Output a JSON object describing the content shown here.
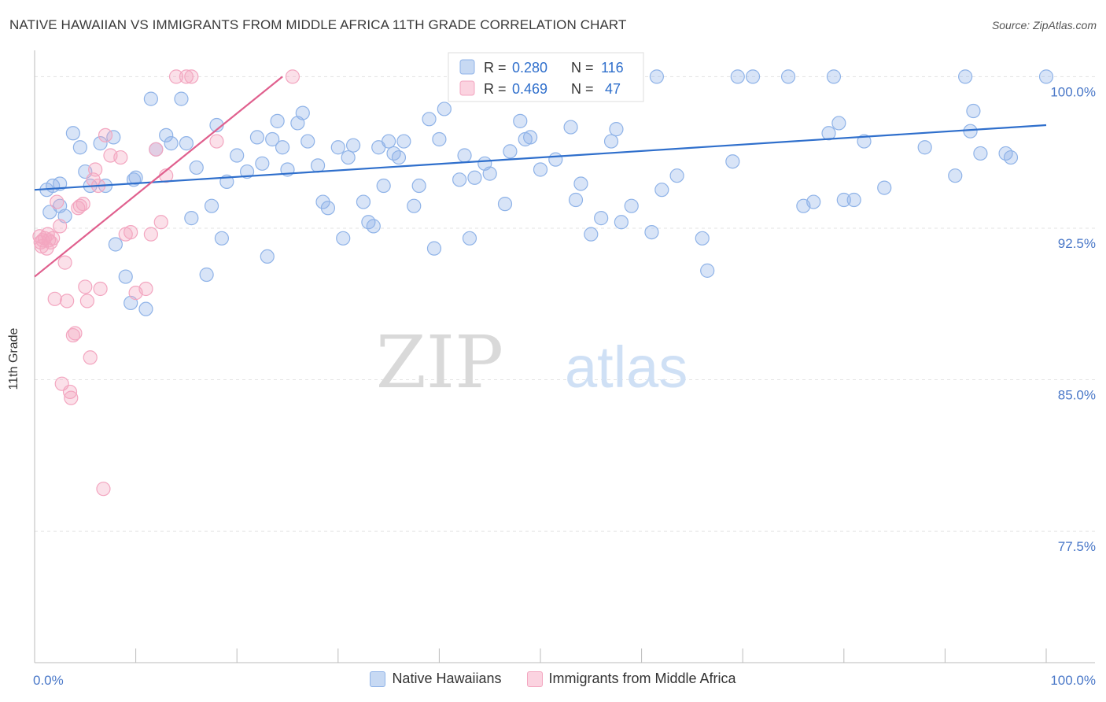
{
  "chart_data": {
    "type": "scatter",
    "title": "NATIVE HAWAIIAN VS IMMIGRANTS FROM MIDDLE AFRICA 11TH GRADE CORRELATION CHART",
    "source": "Source: ZipAtlas.com",
    "ylabel": "11th Grade",
    "xlabel": "",
    "xlim": [
      0,
      100
    ],
    "ylim": [
      71,
      101.3
    ],
    "x_tick_labels": [
      "0.0%",
      "100.0%"
    ],
    "y_ticks": [
      {
        "value": 100.0,
        "label": "100.0%"
      },
      {
        "value": 92.5,
        "label": "92.5%"
      },
      {
        "value": 85.0,
        "label": "85.0%"
      },
      {
        "value": 77.5,
        "label": "77.5%"
      }
    ],
    "watermark": {
      "part1": "ZIP",
      "part2": "atlas"
    },
    "legend": [
      {
        "r_label": "R =",
        "r_value": "0.280",
        "n_label": "N =",
        "n_value": "116"
      },
      {
        "r_label": "R =",
        "r_value": "0.469",
        "n_label": "N =",
        "n_value": "47"
      }
    ],
    "series": [
      {
        "name": "Native Hawaiians",
        "color": "#8fb3e8",
        "line_color": "#2f6fcc",
        "trend": [
          [
            0,
            94.4
          ],
          [
            100,
            97.6
          ]
        ],
        "points": [
          [
            1.2,
            94.4
          ],
          [
            1.8,
            94.6
          ],
          [
            2.5,
            94.7
          ],
          [
            3.8,
            97.2
          ],
          [
            4.5,
            96.5
          ],
          [
            5.0,
            95.3
          ],
          [
            6.5,
            96.7
          ],
          [
            7.0,
            94.6
          ],
          [
            7.8,
            97.0
          ],
          [
            9.0,
            90.1
          ],
          [
            9.5,
            88.8
          ],
          [
            10.0,
            95.0
          ],
          [
            11.0,
            88.5
          ],
          [
            11.5,
            98.9
          ],
          [
            12.0,
            96.4
          ],
          [
            13.0,
            97.1
          ],
          [
            13.5,
            96.7
          ],
          [
            14.5,
            98.9
          ],
          [
            15.0,
            96.7
          ],
          [
            15.5,
            93.0
          ],
          [
            16.0,
            95.5
          ],
          [
            17.0,
            90.2
          ],
          [
            17.5,
            93.6
          ],
          [
            18.0,
            97.6
          ],
          [
            18.5,
            92.0
          ],
          [
            19.0,
            94.8
          ],
          [
            20.0,
            96.1
          ],
          [
            21.0,
            95.3
          ],
          [
            22.0,
            97.0
          ],
          [
            22.5,
            95.7
          ],
          [
            23.0,
            91.1
          ],
          [
            23.5,
            96.9
          ],
          [
            24.0,
            97.8
          ],
          [
            24.5,
            96.5
          ],
          [
            25.0,
            95.4
          ],
          [
            26.0,
            97.7
          ],
          [
            26.5,
            98.2
          ],
          [
            27.0,
            96.8
          ],
          [
            28.0,
            95.6
          ],
          [
            28.5,
            93.8
          ],
          [
            29.0,
            93.5
          ],
          [
            30.0,
            96.5
          ],
          [
            30.5,
            92.0
          ],
          [
            31.0,
            96.0
          ],
          [
            31.5,
            96.6
          ],
          [
            32.5,
            93.8
          ],
          [
            33.0,
            92.8
          ],
          [
            33.5,
            92.6
          ],
          [
            34.0,
            96.5
          ],
          [
            34.5,
            94.6
          ],
          [
            35.0,
            96.8
          ],
          [
            35.5,
            96.2
          ],
          [
            36.0,
            96.0
          ],
          [
            36.5,
            96.8
          ],
          [
            37.5,
            93.6
          ],
          [
            38.0,
            94.6
          ],
          [
            39.0,
            97.9
          ],
          [
            39.5,
            91.5
          ],
          [
            40.0,
            96.9
          ],
          [
            40.5,
            98.4
          ],
          [
            42.0,
            94.9
          ],
          [
            42.5,
            96.1
          ],
          [
            43.0,
            92.0
          ],
          [
            43.5,
            95.0
          ],
          [
            44.5,
            95.7
          ],
          [
            45.0,
            95.2
          ],
          [
            46.5,
            93.7
          ],
          [
            47.0,
            96.3
          ],
          [
            48.0,
            97.8
          ],
          [
            48.5,
            96.9
          ],
          [
            49.0,
            97.0
          ],
          [
            50.0,
            95.4
          ],
          [
            51.5,
            95.9
          ],
          [
            53.0,
            97.5
          ],
          [
            53.5,
            93.9
          ],
          [
            54.0,
            94.7
          ],
          [
            55.0,
            92.2
          ],
          [
            56.0,
            93.0
          ],
          [
            57.0,
            96.8
          ],
          [
            57.5,
            97.4
          ],
          [
            58.0,
            92.8
          ],
          [
            59.0,
            93.6
          ],
          [
            61.0,
            92.3
          ],
          [
            62.0,
            94.4
          ],
          [
            63.5,
            95.1
          ],
          [
            66.0,
            92.0
          ],
          [
            66.5,
            90.4
          ],
          [
            69.0,
            95.8
          ],
          [
            76.0,
            93.6
          ],
          [
            77.0,
            93.8
          ],
          [
            78.5,
            97.2
          ],
          [
            79.5,
            97.7
          ],
          [
            80.0,
            93.9
          ],
          [
            81.0,
            93.9
          ],
          [
            82.0,
            96.8
          ],
          [
            84.0,
            94.5
          ],
          [
            88.0,
            96.5
          ],
          [
            91.0,
            95.1
          ],
          [
            93.5,
            96.2
          ],
          [
            96.0,
            96.2
          ],
          [
            96.5,
            96.0
          ],
          [
            92.0,
            100.0
          ],
          [
            79.0,
            100.0
          ],
          [
            74.5,
            100.0
          ],
          [
            71.0,
            100.0
          ],
          [
            69.5,
            100.0
          ],
          [
            61.5,
            100.0
          ],
          [
            55.0,
            100.0
          ],
          [
            100.0,
            100.0
          ],
          [
            92.8,
            98.3
          ],
          [
            92.5,
            97.3
          ],
          [
            5.5,
            94.6
          ],
          [
            3.0,
            93.1
          ],
          [
            2.5,
            93.6
          ],
          [
            1.5,
            93.3
          ],
          [
            8.0,
            91.7
          ],
          [
            9.8,
            94.9
          ]
        ]
      },
      {
        "name": "Immigrants from Middle Africa",
        "color": "#f3a6c0",
        "line_color": "#e0608e",
        "trend": [
          [
            0,
            90.1
          ],
          [
            24.5,
            100.0
          ]
        ],
        "points": [
          [
            0.5,
            92.1
          ],
          [
            0.6,
            91.8
          ],
          [
            0.7,
            91.6
          ],
          [
            0.8,
            91.9
          ],
          [
            1.0,
            92.0
          ],
          [
            1.2,
            91.5
          ],
          [
            1.3,
            92.2
          ],
          [
            1.4,
            91.9
          ],
          [
            1.6,
            91.8
          ],
          [
            1.8,
            92.0
          ],
          [
            2.0,
            89.0
          ],
          [
            2.2,
            93.8
          ],
          [
            2.5,
            92.6
          ],
          [
            2.7,
            84.8
          ],
          [
            3.0,
            90.8
          ],
          [
            3.2,
            88.9
          ],
          [
            3.5,
            84.4
          ],
          [
            3.6,
            84.1
          ],
          [
            3.8,
            87.2
          ],
          [
            4.0,
            87.3
          ],
          [
            4.3,
            93.5
          ],
          [
            4.5,
            93.6
          ],
          [
            4.8,
            93.7
          ],
          [
            5.0,
            89.6
          ],
          [
            5.2,
            88.9
          ],
          [
            5.5,
            86.1
          ],
          [
            5.8,
            94.9
          ],
          [
            6.0,
            95.4
          ],
          [
            6.3,
            94.6
          ],
          [
            6.5,
            89.5
          ],
          [
            6.8,
            79.6
          ],
          [
            7.0,
            97.1
          ],
          [
            7.5,
            96.1
          ],
          [
            8.5,
            96.0
          ],
          [
            9.0,
            92.2
          ],
          [
            9.5,
            92.3
          ],
          [
            10.0,
            89.3
          ],
          [
            11.0,
            89.5
          ],
          [
            11.5,
            92.2
          ],
          [
            12.0,
            96.4
          ],
          [
            12.5,
            92.8
          ],
          [
            13.0,
            95.1
          ],
          [
            14.0,
            100.0
          ],
          [
            15.0,
            100.0
          ],
          [
            15.5,
            100.0
          ],
          [
            18.0,
            96.8
          ],
          [
            25.5,
            100.0
          ]
        ]
      }
    ]
  },
  "legend_bottom": [
    {
      "label": "Native Hawaiians"
    },
    {
      "label": "Immigrants from Middle Africa"
    }
  ]
}
